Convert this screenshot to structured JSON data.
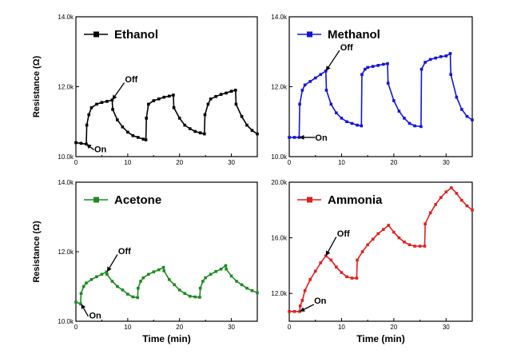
{
  "chart_data": [
    {
      "type": "line",
      "panel": "top-left",
      "xlabel": "",
      "ylabel": "Resistance (Ω)",
      "xlim": [
        0,
        35
      ],
      "ylim": [
        10000,
        14000
      ],
      "x_ticks": [
        0,
        10,
        20,
        30
      ],
      "x_tick_labels": [
        "0",
        "10",
        "20",
        "30"
      ],
      "y_ticks": [
        10000,
        12000,
        14000
      ],
      "y_tick_labels": [
        "10.0k",
        "12.0k",
        "14.0k"
      ],
      "legend_position": "top-left",
      "series": [
        {
          "name": "Ethanol",
          "color": "#000000",
          "marker": "square",
          "x": [
            0,
            1,
            2,
            2.1,
            2.5,
            3,
            4,
            5,
            6,
            7,
            7.1,
            8,
            9,
            10,
            11,
            12,
            13,
            13.5,
            13.6,
            14,
            15,
            16,
            17,
            18,
            18.8,
            18.9,
            20,
            21,
            22,
            23,
            24,
            24.8,
            24.9,
            25.5,
            26,
            27,
            28,
            29,
            30,
            30.8,
            30.9,
            32,
            33,
            34,
            35
          ],
          "y": [
            10400,
            10380,
            10360,
            10900,
            11200,
            11400,
            11500,
            11550,
            11580,
            11620,
            11350,
            11050,
            10850,
            10700,
            10600,
            10550,
            10500,
            10480,
            11100,
            11500,
            11600,
            11650,
            11700,
            11730,
            11760,
            11400,
            11100,
            10900,
            10800,
            10720,
            10680,
            10650,
            11200,
            11500,
            11650,
            11720,
            11780,
            11820,
            11870,
            11900,
            11500,
            11150,
            10900,
            10750,
            10650
          ]
        }
      ],
      "annotations": [
        {
          "text": "Off",
          "x": 7,
          "y": 11620
        },
        {
          "text": "On",
          "x": 2,
          "y": 10360
        }
      ]
    },
    {
      "type": "line",
      "panel": "top-right",
      "xlabel": "",
      "ylabel": "",
      "xlim": [
        0,
        35
      ],
      "ylim": [
        10000,
        14000
      ],
      "x_ticks": [
        0,
        10,
        20,
        30
      ],
      "x_tick_labels": [
        "0",
        "10",
        "20",
        "30"
      ],
      "y_ticks": [
        10000,
        12000,
        14000
      ],
      "y_tick_labels": [
        "10.0k",
        "12.0k",
        "14.0k"
      ],
      "legend_position": "top-right",
      "series": [
        {
          "name": "Methanol",
          "color": "#1414d8",
          "marker": "square",
          "x": [
            0,
            1,
            1.9,
            2,
            2.5,
            3,
            4,
            5,
            6,
            7,
            7.1,
            8,
            9,
            10,
            11,
            12,
            13,
            13.8,
            13.9,
            14.5,
            15,
            16,
            17,
            18,
            18.8,
            18.9,
            20,
            21,
            22,
            23,
            24,
            25.2,
            25.3,
            26,
            27,
            28,
            29,
            30,
            30.8,
            30.9,
            32,
            33,
            34,
            35
          ],
          "y": [
            10550,
            10550,
            10550,
            11500,
            11900,
            12050,
            12150,
            12250,
            12350,
            12450,
            11900,
            11500,
            11250,
            11100,
            11000,
            10950,
            10900,
            10880,
            12350,
            12500,
            12550,
            12580,
            12610,
            12640,
            12660,
            12100,
            11600,
            11300,
            11100,
            10950,
            10880,
            10860,
            12500,
            12700,
            12780,
            12820,
            12860,
            12880,
            12950,
            12350,
            11700,
            11350,
            11150,
            11050
          ]
        }
      ],
      "annotations": [
        {
          "text": "Off",
          "x": 7,
          "y": 12450
        },
        {
          "text": "On",
          "x": 1.9,
          "y": 10550
        }
      ]
    },
    {
      "type": "line",
      "panel": "bottom-left",
      "xlabel": "Time (min)",
      "ylabel": "Resistance (Ω)",
      "xlim": [
        0,
        35
      ],
      "ylim": [
        10000,
        14000
      ],
      "x_ticks": [
        0,
        10,
        20,
        30
      ],
      "x_tick_labels": [
        "0",
        "10",
        "20",
        "30"
      ],
      "y_ticks": [
        10000,
        12000,
        14000
      ],
      "y_tick_labels": [
        "10.0k",
        "12.0k",
        "14.0k"
      ],
      "legend_position": "top-left",
      "series": [
        {
          "name": "Acetone",
          "color": "#1f8a1f",
          "marker": "square",
          "x": [
            0,
            0.9,
            1,
            1.5,
            2,
            3,
            4,
            5,
            5.9,
            6,
            7,
            8,
            9,
            10,
            11,
            11.9,
            12,
            12.5,
            13,
            14,
            15,
            16,
            16.9,
            17,
            18,
            19,
            20,
            21,
            22,
            23,
            23.9,
            24,
            24.5,
            25,
            26,
            27,
            28,
            28.9,
            29,
            30,
            31,
            32,
            33,
            34,
            35
          ],
          "y": [
            10550,
            10500,
            10800,
            11000,
            11100,
            11200,
            11280,
            11350,
            11420,
            11350,
            11150,
            11000,
            10900,
            10780,
            10700,
            10680,
            10950,
            11150,
            11250,
            11350,
            11420,
            11480,
            11550,
            11450,
            11200,
            11050,
            10900,
            10800,
            10720,
            10700,
            10690,
            10950,
            11150,
            11250,
            11350,
            11430,
            11500,
            11600,
            11500,
            11300,
            11150,
            11050,
            10950,
            10880,
            10820
          ]
        }
      ],
      "annotations": [
        {
          "text": "Off",
          "x": 6,
          "y": 11420
        },
        {
          "text": "On",
          "x": 1,
          "y": 10500
        }
      ]
    },
    {
      "type": "line",
      "panel": "bottom-right",
      "xlabel": "Time (min)",
      "ylabel": "",
      "xlim": [
        0,
        35
      ],
      "ylim": [
        10000,
        20000
      ],
      "x_ticks": [
        0,
        10,
        20,
        30
      ],
      "x_tick_labels": [
        "0",
        "10",
        "20",
        "30"
      ],
      "y_ticks": [
        12000,
        16000,
        20000
      ],
      "y_tick_labels": [
        "12.0k",
        "16.0k",
        "20.0k"
      ],
      "legend_position": "top-right",
      "series": [
        {
          "name": "Ammonia",
          "color": "#e02020",
          "marker": "square",
          "x": [
            0,
            1,
            2,
            2.1,
            2.5,
            3,
            4,
            5,
            6,
            7,
            8,
            9,
            10,
            11,
            12,
            12.9,
            13,
            14,
            15,
            16,
            17,
            18,
            19,
            20,
            21,
            22,
            23,
            24,
            25,
            25.9,
            26,
            27,
            28,
            29,
            30,
            31,
            32,
            33,
            34,
            35
          ],
          "y": [
            10700,
            10700,
            10700,
            11100,
            11500,
            12200,
            13000,
            13600,
            14200,
            14700,
            14400,
            13900,
            13500,
            13200,
            13100,
            13100,
            14400,
            15000,
            15500,
            15900,
            16300,
            16600,
            16900,
            16400,
            16000,
            15700,
            15500,
            15400,
            15400,
            15400,
            17000,
            17800,
            18400,
            18900,
            19300,
            19600,
            19200,
            18700,
            18300,
            18000
          ]
        }
      ],
      "annotations": [
        {
          "text": "Off",
          "x": 7,
          "y": 14700
        },
        {
          "text": "On",
          "x": 2,
          "y": 10700
        }
      ]
    }
  ]
}
